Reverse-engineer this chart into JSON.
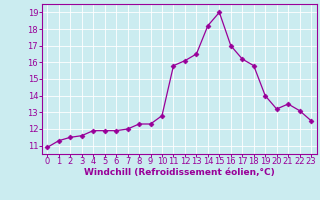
{
  "x": [
    0,
    1,
    2,
    3,
    4,
    5,
    6,
    7,
    8,
    9,
    10,
    11,
    12,
    13,
    14,
    15,
    16,
    17,
    18,
    19,
    20,
    21,
    22,
    23
  ],
  "y": [
    10.9,
    11.3,
    11.5,
    11.6,
    11.9,
    11.9,
    11.9,
    12.0,
    12.3,
    12.3,
    12.8,
    15.8,
    16.1,
    16.5,
    18.2,
    19.0,
    17.0,
    16.2,
    15.8,
    14.0,
    13.2,
    13.5,
    13.1,
    12.5
  ],
  "line_color": "#990099",
  "marker": "D",
  "marker_size": 2.5,
  "background_color": "#cbecf0",
  "grid_color": "#ffffff",
  "xlabel": "Windchill (Refroidissement éolien,°C)",
  "ylim": [
    10.5,
    19.5
  ],
  "xlim": [
    -0.5,
    23.5
  ],
  "yticks": [
    11,
    12,
    13,
    14,
    15,
    16,
    17,
    18,
    19
  ],
  "xticks": [
    0,
    1,
    2,
    3,
    4,
    5,
    6,
    7,
    8,
    9,
    10,
    11,
    12,
    13,
    14,
    15,
    16,
    17,
    18,
    19,
    20,
    21,
    22,
    23
  ],
  "tick_color": "#990099",
  "label_color": "#990099",
  "label_fontsize": 6.5,
  "tick_fontsize": 6.0,
  "spine_color": "#990099",
  "linewidth": 0.9
}
